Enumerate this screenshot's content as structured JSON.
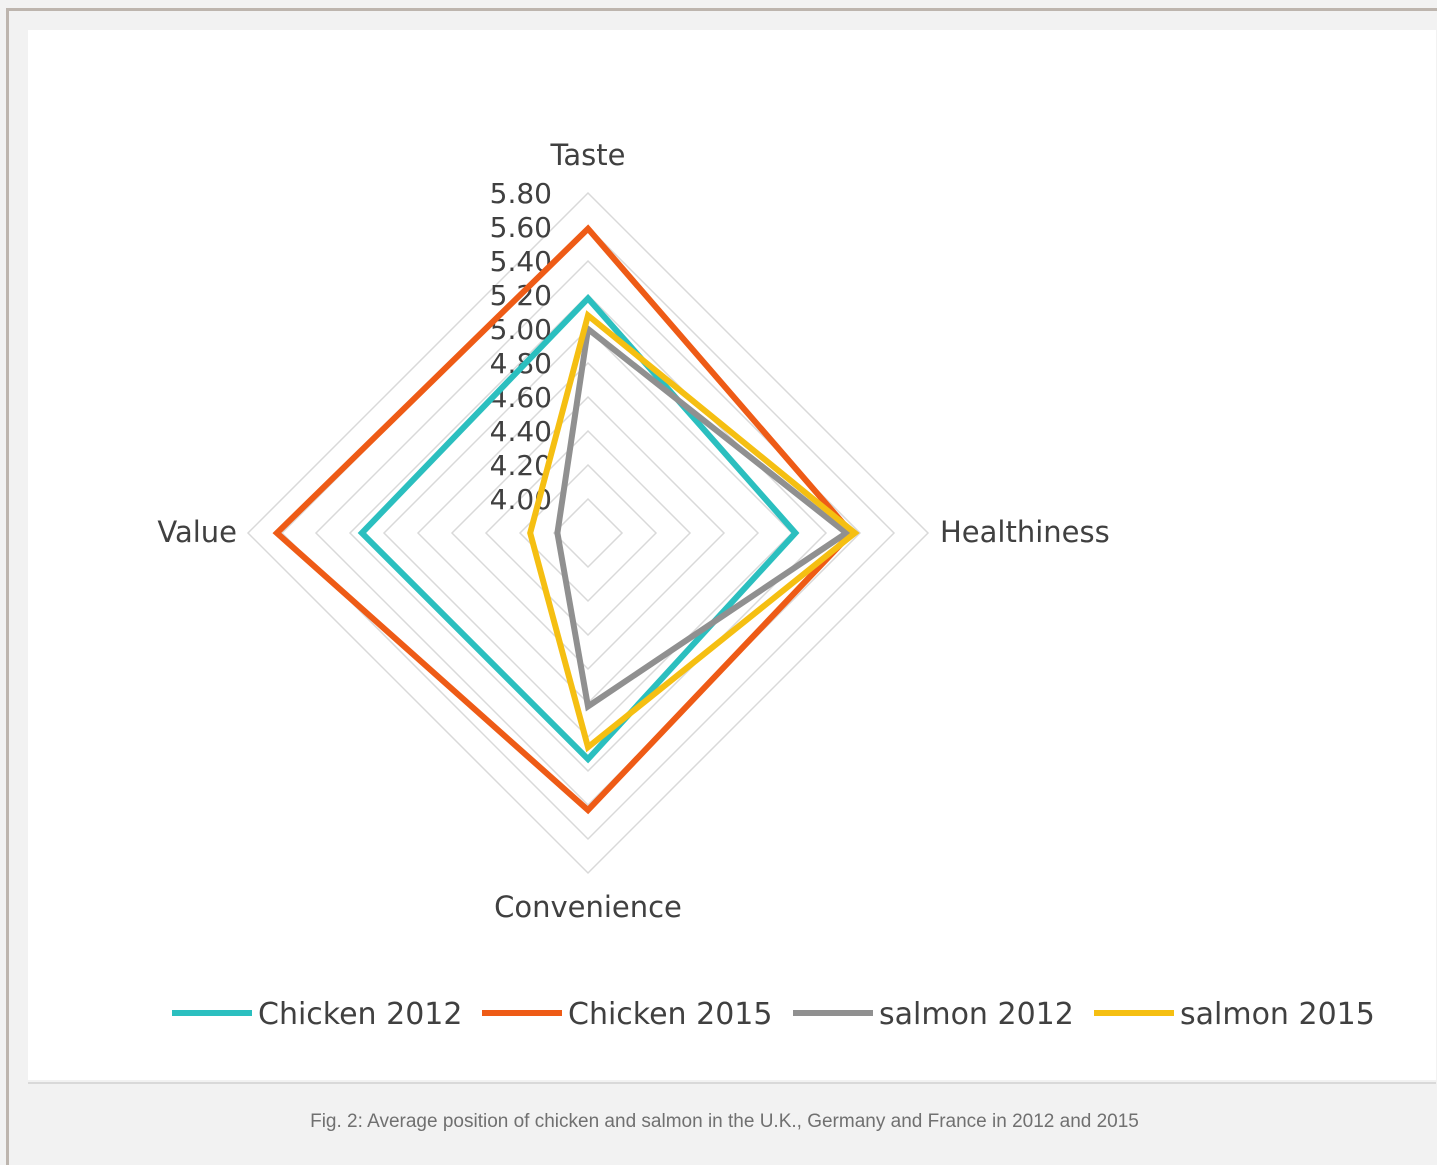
{
  "chart_data": {
    "type": "radar",
    "axes": [
      "Taste",
      "Healthiness",
      "Convenience",
      "Value"
    ],
    "ticks": [
      "5.80",
      "5.60",
      "5.40",
      "5.20",
      "5.00",
      "4.80",
      "4.60",
      "4.40",
      "4.20",
      "4.00"
    ],
    "rmin": 3.8,
    "rmax": 5.8,
    "grid": true,
    "legend_position": "bottom",
    "series": [
      {
        "name": "Chicken 2012",
        "color": "#2bbfbf",
        "values": [
          5.18,
          5.02,
          5.13,
          5.13
        ]
      },
      {
        "name": "Chicken 2015",
        "color": "#ee5b16",
        "values": [
          5.59,
          5.35,
          5.43,
          5.63
        ]
      },
      {
        "name": "salmon 2012",
        "color": "#909090",
        "values": [
          5.0,
          5.32,
          4.82,
          3.98
        ]
      },
      {
        "name": "salmon 2015",
        "color": "#f5bf12",
        "values": [
          5.08,
          5.37,
          5.06,
          4.14
        ]
      }
    ]
  },
  "caption": "Fig. 2: Average position of chicken and salmon in the U.K., Germany and France in 2012 and 2015"
}
